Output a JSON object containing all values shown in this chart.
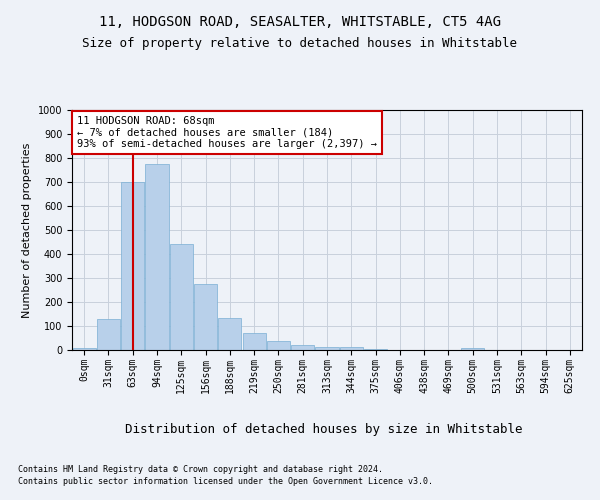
{
  "title_line1": "11, HODGSON ROAD, SEASALTER, WHITSTABLE, CT5 4AG",
  "title_line2": "Size of property relative to detached houses in Whitstable",
  "xlabel": "Distribution of detached houses by size in Whitstable",
  "ylabel": "Number of detached properties",
  "bar_color": "#b8d0ea",
  "bar_edge_color": "#7aafd4",
  "categories": [
    "0sqm",
    "31sqm",
    "63sqm",
    "94sqm",
    "125sqm",
    "156sqm",
    "188sqm",
    "219sqm",
    "250sqm",
    "281sqm",
    "313sqm",
    "344sqm",
    "375sqm",
    "406sqm",
    "438sqm",
    "469sqm",
    "500sqm",
    "531sqm",
    "563sqm",
    "594sqm",
    "625sqm"
  ],
  "values": [
    8,
    128,
    700,
    775,
    443,
    275,
    133,
    70,
    37,
    22,
    12,
    12,
    6,
    0,
    0,
    0,
    8,
    0,
    0,
    0,
    0
  ],
  "ylim": [
    0,
    1000
  ],
  "yticks": [
    0,
    100,
    200,
    300,
    400,
    500,
    600,
    700,
    800,
    900,
    1000
  ],
  "annotation_title": "11 HODGSON ROAD: 68sqm",
  "annotation_line1": "← 7% of detached houses are smaller (184)",
  "annotation_line2": "93% of semi-detached houses are larger (2,397) →",
  "vline_x": 2,
  "footer_line1": "Contains HM Land Registry data © Crown copyright and database right 2024.",
  "footer_line2": "Contains public sector information licensed under the Open Government Licence v3.0.",
  "bg_color": "#eef2f8",
  "plot_bg_color": "#eef2f8",
  "annotation_box_color": "#ffffff",
  "annotation_box_edge": "#cc0000",
  "vline_color": "#cc0000",
  "grid_color": "#c8d0dc",
  "title_fontsize": 10,
  "subtitle_fontsize": 9,
  "tick_fontsize": 7,
  "ylabel_fontsize": 8,
  "xlabel_fontsize": 9,
  "annotation_fontsize": 7.5,
  "footer_fontsize": 6
}
